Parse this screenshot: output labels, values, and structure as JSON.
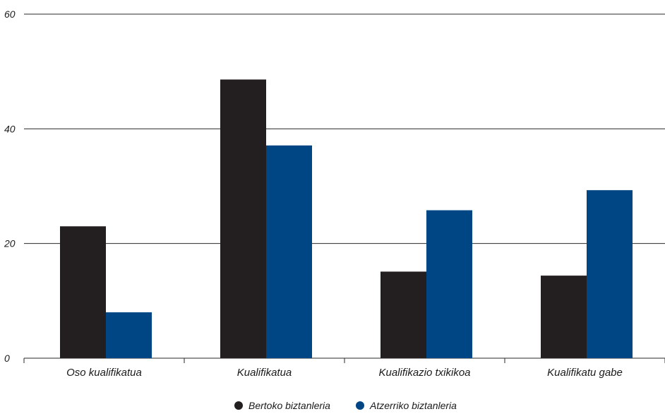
{
  "chart_data": {
    "type": "bar",
    "categories": [
      "Oso kualifikatua",
      "Kualifikatua",
      "Kualifikazio txikikoa",
      "Kualifikatu gabe"
    ],
    "series": [
      {
        "name": "Bertoko biztanleria",
        "values": [
          23.0,
          48.6,
          15.1,
          14.4
        ],
        "color": "#231f20"
      },
      {
        "name": "Atzerriko biztanleria",
        "values": [
          8.0,
          37.1,
          25.8,
          29.3
        ],
        "color": "#004684"
      }
    ],
    "y_ticks": [
      "0",
      "20",
      "40",
      "60"
    ],
    "ylim": [
      0,
      60
    ],
    "grid": true,
    "legend_position": "bottom-center",
    "title": "",
    "xlabel": "",
    "ylabel": ""
  }
}
